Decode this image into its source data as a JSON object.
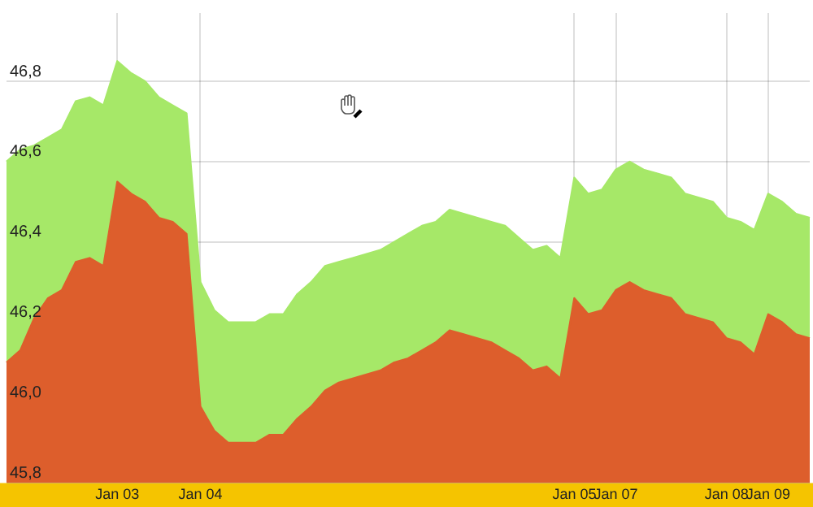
{
  "chart_data": {
    "type": "area",
    "categories": [
      null,
      null,
      null,
      null,
      null,
      null,
      null,
      null,
      "Jan 03",
      null,
      null,
      null,
      null,
      null,
      "Jan 04",
      null,
      null,
      null,
      null,
      null,
      null,
      null,
      null,
      null,
      null,
      null,
      null,
      null,
      null,
      null,
      null,
      null,
      null,
      null,
      null,
      null,
      null,
      null,
      null,
      null,
      null,
      "Jan 05",
      null,
      null,
      "Jan 07",
      null,
      null,
      null,
      null,
      null,
      null,
      null,
      "Jan 08",
      null,
      null,
      "Jan 09",
      null,
      null,
      null
    ],
    "series": [
      {
        "color": "#a6e868",
        "values": [
          46.6,
          46.63,
          46.64,
          46.66,
          46.68,
          46.75,
          46.76,
          46.74,
          46.85,
          46.82,
          46.8,
          46.76,
          46.74,
          46.72,
          46.3,
          46.23,
          46.2,
          46.2,
          46.2,
          46.22,
          46.22,
          46.27,
          46.3,
          46.34,
          46.35,
          46.36,
          46.37,
          46.38,
          46.4,
          46.42,
          46.44,
          46.45,
          46.48,
          46.47,
          46.46,
          46.45,
          46.44,
          46.41,
          46.38,
          46.39,
          46.36,
          46.56,
          46.52,
          46.53,
          46.58,
          46.6,
          46.58,
          46.57,
          46.56,
          46.52,
          46.51,
          46.5,
          46.46,
          46.45,
          46.43,
          46.52,
          46.5,
          46.47,
          46.46
        ]
      },
      {
        "color": "#dd5e2c",
        "values": [
          46.1,
          46.13,
          46.21,
          46.26,
          46.28,
          46.35,
          46.36,
          46.34,
          46.55,
          46.52,
          46.5,
          46.46,
          46.45,
          46.42,
          45.99,
          45.93,
          45.9,
          45.9,
          45.9,
          45.92,
          45.92,
          45.96,
          45.99,
          46.03,
          46.05,
          46.06,
          46.07,
          46.08,
          46.1,
          46.11,
          46.13,
          46.15,
          46.18,
          46.17,
          46.16,
          46.15,
          46.13,
          46.11,
          46.08,
          46.09,
          46.06,
          46.26,
          46.22,
          46.23,
          46.28,
          46.3,
          46.28,
          46.27,
          46.26,
          46.22,
          46.21,
          46.2,
          46.16,
          46.15,
          46.12,
          46.22,
          46.2,
          46.17,
          46.16
        ]
      }
    ],
    "ylim": [
      45.8,
      46.97
    ],
    "yticks": [
      {
        "value": 45.8,
        "label": "45,8"
      },
      {
        "value": 46.0,
        "label": "46,0"
      },
      {
        "value": 46.2,
        "label": "46,2"
      },
      {
        "value": 46.4,
        "label": "46,4"
      },
      {
        "value": 46.6,
        "label": "46,6"
      },
      {
        "value": 46.8,
        "label": "46,8"
      }
    ],
    "grid": true,
    "legend": false
  }
}
